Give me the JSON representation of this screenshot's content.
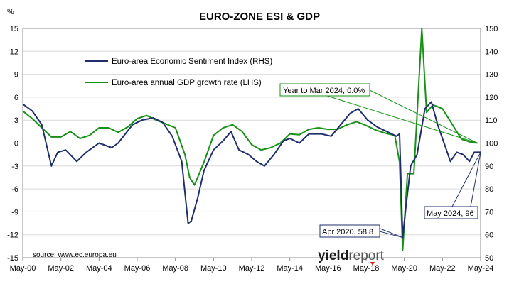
{
  "chart_data": {
    "type": "line",
    "title": "EURO-ZONE ESI & GDP",
    "y_left_unit_label": "%",
    "x_ticks": [
      "May-00",
      "May-02",
      "May-04",
      "May-06",
      "May-08",
      "May-10",
      "May-12",
      "May-14",
      "May-16",
      "May-18",
      "May-20",
      "May-22",
      "May-24"
    ],
    "y_left": {
      "ticks": [
        15,
        12,
        9,
        6,
        3,
        0,
        -3,
        -6,
        -9,
        -12,
        -15
      ],
      "min": -15,
      "max": 15
    },
    "y_right": {
      "ticks": [
        150,
        140,
        130,
        120,
        110,
        100,
        90,
        80,
        70,
        60,
        50
      ],
      "min": 50,
      "max": 150
    },
    "grid": true,
    "legend_position": "upper-left",
    "colors": {
      "esi": "#1f2f6b",
      "gdp": "#169116",
      "callout_green_border": "#169116",
      "callout_navy_border": "#1f2f6b"
    },
    "series": [
      {
        "name": "Euro-area Economic Sentiment Index (RHS)",
        "axis": "right",
        "x": [
          "2000-05",
          "2000-11",
          "2001-05",
          "2001-11",
          "2002-03",
          "2002-08",
          "2003-03",
          "2003-09",
          "2004-05",
          "2005-01",
          "2005-05",
          "2006-02",
          "2006-08",
          "2007-03",
          "2007-09",
          "2008-03",
          "2008-09",
          "2009-01",
          "2009-03",
          "2009-07",
          "2009-11",
          "2010-05",
          "2010-11",
          "2011-04",
          "2011-09",
          "2012-03",
          "2012-08",
          "2013-01",
          "2013-07",
          "2014-01",
          "2014-05",
          "2014-11",
          "2015-05",
          "2016-01",
          "2016-07",
          "2017-01",
          "2017-07",
          "2017-12",
          "2018-06",
          "2018-12",
          "2019-06",
          "2019-12",
          "2020-02",
          "2020-04",
          "2020-06",
          "2020-09",
          "2021-01",
          "2021-06",
          "2021-10",
          "2022-02",
          "2022-06",
          "2022-10",
          "2023-02",
          "2023-06",
          "2023-10",
          "2024-01",
          "2024-05"
        ],
        "values": [
          117,
          114,
          108,
          90,
          96,
          97,
          92,
          96,
          100,
          98,
          100,
          108,
          110,
          111,
          109,
          103,
          92,
          65,
          66,
          76,
          88,
          97,
          101,
          105,
          97,
          95,
          92,
          90,
          95,
          101,
          102,
          100,
          104,
          104,
          103,
          108,
          113,
          115,
          110,
          107,
          105,
          103,
          104,
          58.8,
          72,
          90,
          95,
          115,
          118,
          108,
          100,
          92,
          96,
          95,
          92,
          96,
          96
        ]
      },
      {
        "name": "Euro-area annual GDP growth rate (LHS)",
        "axis": "left",
        "x": [
          "2000-05",
          "2000-11",
          "2001-05",
          "2001-11",
          "2002-05",
          "2002-11",
          "2003-05",
          "2003-11",
          "2004-05",
          "2004-11",
          "2005-05",
          "2005-11",
          "2006-05",
          "2006-11",
          "2007-05",
          "2007-11",
          "2008-05",
          "2008-11",
          "2009-02",
          "2009-05",
          "2009-11",
          "2010-05",
          "2010-11",
          "2011-05",
          "2011-11",
          "2012-05",
          "2012-11",
          "2013-05",
          "2013-11",
          "2014-05",
          "2014-11",
          "2015-05",
          "2015-11",
          "2016-05",
          "2016-11",
          "2017-05",
          "2017-11",
          "2018-05",
          "2018-11",
          "2019-05",
          "2019-11",
          "2020-02",
          "2020-04",
          "2020-07",
          "2020-11",
          "2021-04",
          "2021-07",
          "2021-11",
          "2022-05",
          "2022-11",
          "2023-05",
          "2023-11",
          "2024-03"
        ],
        "values": [
          4.2,
          3.2,
          2.0,
          0.8,
          0.8,
          1.5,
          0.6,
          1.0,
          2.0,
          2.0,
          1.4,
          2.1,
          3.2,
          3.6,
          3.0,
          2.5,
          2.0,
          -1.5,
          -4.5,
          -5.5,
          -2.5,
          1.0,
          2.0,
          2.4,
          1.5,
          -0.2,
          -0.9,
          -0.6,
          0.0,
          1.2,
          1.1,
          1.8,
          2.0,
          1.8,
          1.8,
          2.4,
          2.8,
          2.3,
          1.7,
          1.3,
          1.0,
          -2.5,
          -14.0,
          -4.0,
          -4.0,
          15.0,
          4.0,
          5.0,
          4.5,
          2.5,
          0.5,
          0.1,
          0.0
        ]
      }
    ],
    "callouts": [
      {
        "text": "Year to Mar 2024, 0.0%",
        "series": "Euro-area annual GDP growth rate (LHS)",
        "point_x": "2024-03",
        "point_y": 0.0
      },
      {
        "text": "May 2024, 96",
        "series": "Euro-area Economic Sentiment Index (RHS)",
        "point_x": "2024-05",
        "point_y": 96
      },
      {
        "text": "Apr 2020, 58.8",
        "series": "Euro-area Economic Sentiment Index (RHS)",
        "point_x": "2020-04",
        "point_y": 58.8
      }
    ],
    "source_note": "source: www.ec.europa.eu",
    "watermark": {
      "part1": "yield",
      "part2": "report"
    }
  }
}
